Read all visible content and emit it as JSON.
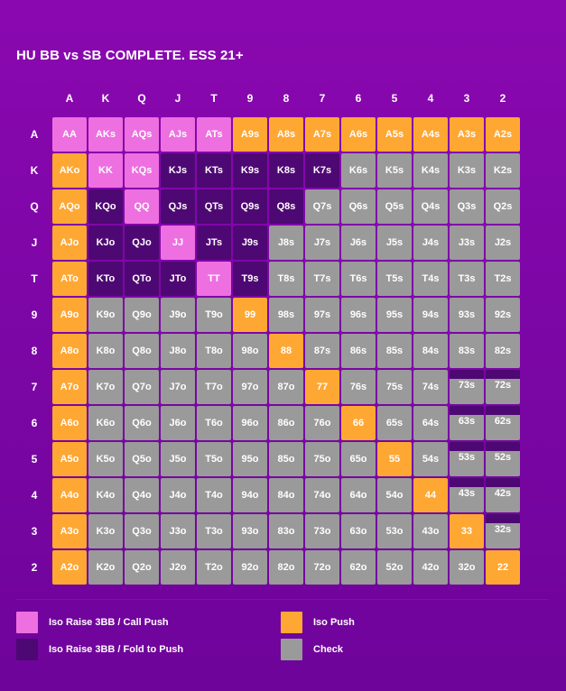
{
  "chart_data": {
    "type": "heatmap",
    "title": "HU BB vs SB COMPLETE. ESS 21+",
    "ranks": [
      "A",
      "K",
      "Q",
      "J",
      "T",
      "9",
      "8",
      "7",
      "6",
      "5",
      "4",
      "3",
      "2"
    ],
    "actions": {
      "R": {
        "label": "Iso Raise 3BB / Call Push",
        "color": "#ee6fe0"
      },
      "P": {
        "label": "Iso Push",
        "color": "#ffa733"
      },
      "F": {
        "label": "Iso Raise 3BB / Fold to Push",
        "color": "#4e0873"
      },
      "C": {
        "label": "Check",
        "color": "#9a9a9a"
      }
    },
    "cells": [
      [
        {
          "hand": "AA",
          "action": "R"
        },
        {
          "hand": "AKs",
          "action": "R"
        },
        {
          "hand": "AQs",
          "action": "R"
        },
        {
          "hand": "AJs",
          "action": "R"
        },
        {
          "hand": "ATs",
          "action": "R"
        },
        {
          "hand": "A9s",
          "action": "P"
        },
        {
          "hand": "A8s",
          "action": "P"
        },
        {
          "hand": "A7s",
          "action": "P"
        },
        {
          "hand": "A6s",
          "action": "P"
        },
        {
          "hand": "A5s",
          "action": "P"
        },
        {
          "hand": "A4s",
          "action": "P"
        },
        {
          "hand": "A3s",
          "action": "P"
        },
        {
          "hand": "A2s",
          "action": "P"
        }
      ],
      [
        {
          "hand": "AKo",
          "action": "P"
        },
        {
          "hand": "KK",
          "action": "R"
        },
        {
          "hand": "KQs",
          "action": "R"
        },
        {
          "hand": "KJs",
          "action": "F"
        },
        {
          "hand": "KTs",
          "action": "F"
        },
        {
          "hand": "K9s",
          "action": "F"
        },
        {
          "hand": "K8s",
          "action": "F"
        },
        {
          "hand": "K7s",
          "action": "F"
        },
        {
          "hand": "K6s",
          "action": "C"
        },
        {
          "hand": "K5s",
          "action": "C"
        },
        {
          "hand": "K4s",
          "action": "C"
        },
        {
          "hand": "K3s",
          "action": "C"
        },
        {
          "hand": "K2s",
          "action": "C"
        }
      ],
      [
        {
          "hand": "AQo",
          "action": "P"
        },
        {
          "hand": "KQo",
          "action": "F"
        },
        {
          "hand": "QQ",
          "action": "R"
        },
        {
          "hand": "QJs",
          "action": "F"
        },
        {
          "hand": "QTs",
          "action": "F"
        },
        {
          "hand": "Q9s",
          "action": "F"
        },
        {
          "hand": "Q8s",
          "action": "F"
        },
        {
          "hand": "Q7s",
          "action": "C"
        },
        {
          "hand": "Q6s",
          "action": "C"
        },
        {
          "hand": "Q5s",
          "action": "C"
        },
        {
          "hand": "Q4s",
          "action": "C"
        },
        {
          "hand": "Q3s",
          "action": "C"
        },
        {
          "hand": "Q2s",
          "action": "C"
        }
      ],
      [
        {
          "hand": "AJo",
          "action": "P"
        },
        {
          "hand": "KJo",
          "action": "F"
        },
        {
          "hand": "QJo",
          "action": "F"
        },
        {
          "hand": "JJ",
          "action": "R"
        },
        {
          "hand": "JTs",
          "action": "F"
        },
        {
          "hand": "J9s",
          "action": "F"
        },
        {
          "hand": "J8s",
          "action": "C"
        },
        {
          "hand": "J7s",
          "action": "C"
        },
        {
          "hand": "J6s",
          "action": "C"
        },
        {
          "hand": "J5s",
          "action": "C"
        },
        {
          "hand": "J4s",
          "action": "C"
        },
        {
          "hand": "J3s",
          "action": "C"
        },
        {
          "hand": "J2s",
          "action": "C"
        }
      ],
      [
        {
          "hand": "ATo",
          "action": "P"
        },
        {
          "hand": "KTo",
          "action": "F"
        },
        {
          "hand": "QTo",
          "action": "F"
        },
        {
          "hand": "JTo",
          "action": "F"
        },
        {
          "hand": "TT",
          "action": "R"
        },
        {
          "hand": "T9s",
          "action": "F"
        },
        {
          "hand": "T8s",
          "action": "C"
        },
        {
          "hand": "T7s",
          "action": "C"
        },
        {
          "hand": "T6s",
          "action": "C"
        },
        {
          "hand": "T5s",
          "action": "C"
        },
        {
          "hand": "T4s",
          "action": "C"
        },
        {
          "hand": "T3s",
          "action": "C"
        },
        {
          "hand": "T2s",
          "action": "C"
        }
      ],
      [
        {
          "hand": "A9o",
          "action": "P"
        },
        {
          "hand": "K9o",
          "action": "C"
        },
        {
          "hand": "Q9o",
          "action": "C"
        },
        {
          "hand": "J9o",
          "action": "C"
        },
        {
          "hand": "T9o",
          "action": "C"
        },
        {
          "hand": "99",
          "action": "P"
        },
        {
          "hand": "98s",
          "action": "C"
        },
        {
          "hand": "97s",
          "action": "C"
        },
        {
          "hand": "96s",
          "action": "C"
        },
        {
          "hand": "95s",
          "action": "C"
        },
        {
          "hand": "94s",
          "action": "C"
        },
        {
          "hand": "93s",
          "action": "C"
        },
        {
          "hand": "92s",
          "action": "C"
        }
      ],
      [
        {
          "hand": "A8o",
          "action": "P"
        },
        {
          "hand": "K8o",
          "action": "C"
        },
        {
          "hand": "Q8o",
          "action": "C"
        },
        {
          "hand": "J8o",
          "action": "C"
        },
        {
          "hand": "T8o",
          "action": "C"
        },
        {
          "hand": "98o",
          "action": "C"
        },
        {
          "hand": "88",
          "action": "P"
        },
        {
          "hand": "87s",
          "action": "C"
        },
        {
          "hand": "86s",
          "action": "C"
        },
        {
          "hand": "85s",
          "action": "C"
        },
        {
          "hand": "84s",
          "action": "C"
        },
        {
          "hand": "83s",
          "action": "C"
        },
        {
          "hand": "82s",
          "action": "C"
        }
      ],
      [
        {
          "hand": "A7o",
          "action": "P"
        },
        {
          "hand": "K7o",
          "action": "C"
        },
        {
          "hand": "Q7o",
          "action": "C"
        },
        {
          "hand": "J7o",
          "action": "C"
        },
        {
          "hand": "T7o",
          "action": "C"
        },
        {
          "hand": "97o",
          "action": "C"
        },
        {
          "hand": "87o",
          "action": "C"
        },
        {
          "hand": "77",
          "action": "P"
        },
        {
          "hand": "76s",
          "action": "C"
        },
        {
          "hand": "75s",
          "action": "C"
        },
        {
          "hand": "74s",
          "action": "C"
        },
        {
          "hand": "73s",
          "action": "C",
          "split": "F"
        },
        {
          "hand": "72s",
          "action": "C",
          "split": "F"
        }
      ],
      [
        {
          "hand": "A6o",
          "action": "P"
        },
        {
          "hand": "K6o",
          "action": "C"
        },
        {
          "hand": "Q6o",
          "action": "C"
        },
        {
          "hand": "J6o",
          "action": "C"
        },
        {
          "hand": "T6o",
          "action": "C"
        },
        {
          "hand": "96o",
          "action": "C"
        },
        {
          "hand": "86o",
          "action": "C"
        },
        {
          "hand": "76o",
          "action": "C"
        },
        {
          "hand": "66",
          "action": "P"
        },
        {
          "hand": "65s",
          "action": "C"
        },
        {
          "hand": "64s",
          "action": "C"
        },
        {
          "hand": "63s",
          "action": "C",
          "split": "F"
        },
        {
          "hand": "62s",
          "action": "C",
          "split": "F"
        }
      ],
      [
        {
          "hand": "A5o",
          "action": "P"
        },
        {
          "hand": "K5o",
          "action": "C"
        },
        {
          "hand": "Q5o",
          "action": "C"
        },
        {
          "hand": "J5o",
          "action": "C"
        },
        {
          "hand": "T5o",
          "action": "C"
        },
        {
          "hand": "95o",
          "action": "C"
        },
        {
          "hand": "85o",
          "action": "C"
        },
        {
          "hand": "75o",
          "action": "C"
        },
        {
          "hand": "65o",
          "action": "C"
        },
        {
          "hand": "55",
          "action": "P"
        },
        {
          "hand": "54s",
          "action": "C"
        },
        {
          "hand": "53s",
          "action": "C",
          "split": "F"
        },
        {
          "hand": "52s",
          "action": "C",
          "split": "F"
        }
      ],
      [
        {
          "hand": "A4o",
          "action": "P"
        },
        {
          "hand": "K4o",
          "action": "C"
        },
        {
          "hand": "Q4o",
          "action": "C"
        },
        {
          "hand": "J4o",
          "action": "C"
        },
        {
          "hand": "T4o",
          "action": "C"
        },
        {
          "hand": "94o",
          "action": "C"
        },
        {
          "hand": "84o",
          "action": "C"
        },
        {
          "hand": "74o",
          "action": "C"
        },
        {
          "hand": "64o",
          "action": "C"
        },
        {
          "hand": "54o",
          "action": "C"
        },
        {
          "hand": "44",
          "action": "P"
        },
        {
          "hand": "43s",
          "action": "C",
          "split": "F"
        },
        {
          "hand": "42s",
          "action": "C",
          "split": "F"
        }
      ],
      [
        {
          "hand": "A3o",
          "action": "P"
        },
        {
          "hand": "K3o",
          "action": "C"
        },
        {
          "hand": "Q3o",
          "action": "C"
        },
        {
          "hand": "J3o",
          "action": "C"
        },
        {
          "hand": "T3o",
          "action": "C"
        },
        {
          "hand": "93o",
          "action": "C"
        },
        {
          "hand": "83o",
          "action": "C"
        },
        {
          "hand": "73o",
          "action": "C"
        },
        {
          "hand": "63o",
          "action": "C"
        },
        {
          "hand": "53o",
          "action": "C"
        },
        {
          "hand": "43o",
          "action": "C"
        },
        {
          "hand": "33",
          "action": "P"
        },
        {
          "hand": "32s",
          "action": "C",
          "split": "F"
        }
      ],
      [
        {
          "hand": "A2o",
          "action": "P"
        },
        {
          "hand": "K2o",
          "action": "C"
        },
        {
          "hand": "Q2o",
          "action": "C"
        },
        {
          "hand": "J2o",
          "action": "C"
        },
        {
          "hand": "T2o",
          "action": "C"
        },
        {
          "hand": "92o",
          "action": "C"
        },
        {
          "hand": "82o",
          "action": "C"
        },
        {
          "hand": "72o",
          "action": "C"
        },
        {
          "hand": "62o",
          "action": "C"
        },
        {
          "hand": "52o",
          "action": "C"
        },
        {
          "hand": "42o",
          "action": "C"
        },
        {
          "hand": "32o",
          "action": "C"
        },
        {
          "hand": "22",
          "action": "P"
        }
      ]
    ],
    "legend": [
      {
        "action": "R",
        "label": "Iso Raise 3BB / Call Push"
      },
      {
        "action": "F",
        "label": "Iso Raise 3BB / Fold to Push"
      },
      {
        "action": "P",
        "label": "Iso Push"
      },
      {
        "action": "C",
        "label": "Check"
      }
    ]
  }
}
